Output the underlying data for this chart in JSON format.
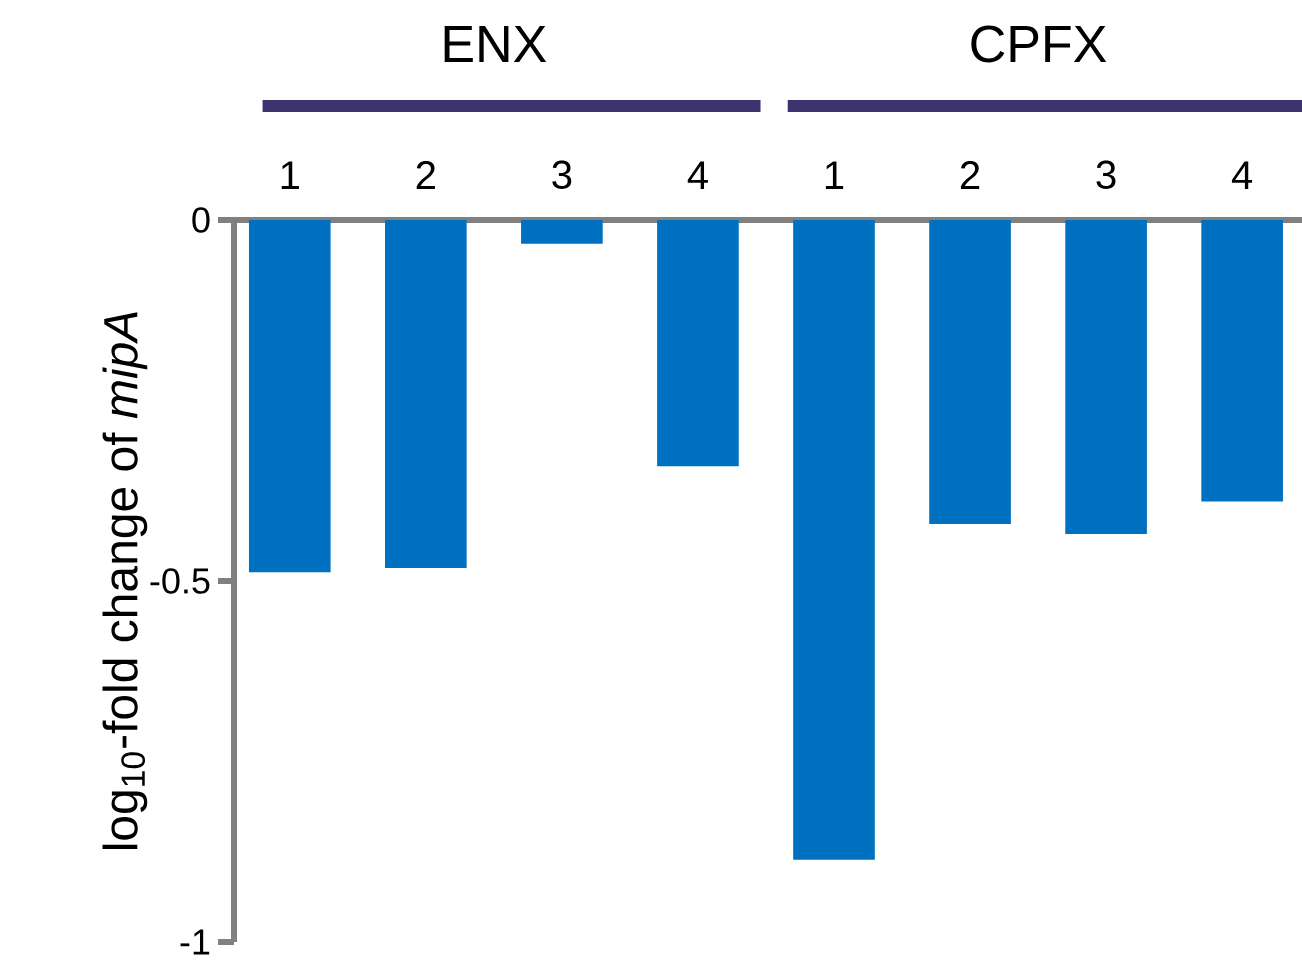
{
  "chart_data": {
    "type": "bar",
    "ylabel": "log$_{10}$-fold change of *mipA*",
    "categories": [
      "1",
      "2",
      "3",
      "4",
      "1",
      "2",
      "3",
      "4"
    ],
    "values": [
      -0.488,
      -0.482,
      -0.033,
      -0.341,
      -0.886,
      -0.421,
      -0.435,
      -0.39
    ],
    "color": "#0070c0",
    "ylim": [
      -1,
      0
    ],
    "yticks": [
      {
        "value": -1,
        "label": "-1"
      },
      {
        "value": -0.5,
        "label": "-0.5"
      },
      0
    ],
    "annotations": [
      "ENX",
      "CPFX"
    ]
  }
}
